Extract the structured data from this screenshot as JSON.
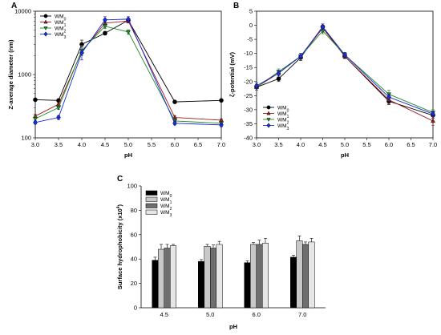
{
  "figure": {
    "colors": {
      "WM0": "#000000",
      "WM1": "#9b1c1c",
      "WM2": "#1f8a2a",
      "WM3": "#1a2bd6"
    },
    "bar_colors": [
      "#000000",
      "#c8c8c8",
      "#6e6e6e",
      "#e6e6e6"
    ]
  },
  "chart_data": [
    {
      "panel": "A",
      "type": "line",
      "xlabel": "pH",
      "ylabel": "Z-average diameter (nm)",
      "xlim": [
        3.0,
        7.0
      ],
      "ylim": [
        100,
        10000
      ],
      "yscale": "log",
      "xticks": [
        "3.0",
        "3.5",
        "4.0",
        "4.5",
        "5.0",
        "5.5",
        "6.0",
        "6.5",
        "7.0"
      ],
      "yticks": [
        "100",
        "1000",
        "10000"
      ],
      "legend": {
        "placement": "top-left"
      },
      "x": [
        3.0,
        3.5,
        4.0,
        4.5,
        5.0,
        6.0,
        7.0
      ],
      "series": [
        {
          "name": "WM",
          "sub": "0",
          "marker": "circle",
          "values": [
            400,
            390,
            3000,
            4500,
            7200,
            370,
            390
          ],
          "err": [
            0,
            0,
            500,
            300,
            400,
            15,
            15
          ]
        },
        {
          "name": "WM",
          "sub": "1",
          "marker": "triangle-up",
          "values": [
            220,
            340,
            2300,
            6500,
            7000,
            210,
            190
          ],
          "err": [
            15,
            20,
            600,
            500,
            500,
            15,
            10
          ]
        },
        {
          "name": "WM",
          "sub": "2",
          "marker": "triangle-down",
          "values": [
            200,
            300,
            2400,
            5800,
            4700,
            185,
            170
          ],
          "err": [
            15,
            20,
            400,
            500,
            400,
            10,
            10
          ]
        },
        {
          "name": "WM",
          "sub": "3",
          "marker": "diamond",
          "values": [
            175,
            210,
            2200,
            7300,
            7500,
            170,
            160
          ],
          "err": [
            10,
            15,
            500,
            900,
            700,
            10,
            10
          ]
        }
      ]
    },
    {
      "panel": "B",
      "type": "line",
      "xlabel": "pH",
      "ylabel": "ζ-potential (mV)",
      "xlim": [
        3.0,
        7.0
      ],
      "ylim": [
        -40,
        5
      ],
      "xticks": [
        "3.0",
        "3.5",
        "4.0",
        "4.5",
        "5.0",
        "5.5",
        "6.0",
        "6.5",
        "7.0"
      ],
      "yticks": [
        "-40",
        "-35",
        "-30",
        "-25",
        "-20",
        "-15",
        "-10",
        "-5",
        "0",
        "5"
      ],
      "legend": {
        "placement": "bottom-left"
      },
      "x": [
        3.0,
        3.5,
        4.0,
        4.5,
        5.0,
        6.0,
        7.0
      ],
      "series": [
        {
          "name": "WM",
          "sub": "0",
          "marker": "circle",
          "values": [
            -22.0,
            -19.0,
            -11.5,
            -0.5,
            -11.0,
            -27.0,
            -32.0
          ],
          "err": [
            1.0,
            1.0,
            1.0,
            1.0,
            0.8,
            1.2,
            1.0
          ]
        },
        {
          "name": "WM",
          "sub": "1",
          "marker": "triangle-up",
          "values": [
            -22.0,
            -17.0,
            -11.0,
            -1.0,
            -11.0,
            -26.5,
            -34.0
          ],
          "err": [
            1.0,
            1.0,
            1.0,
            1.0,
            0.8,
            1.5,
            1.5
          ]
        },
        {
          "name": "WM",
          "sub": "2",
          "marker": "triangle-down",
          "values": [
            -22.0,
            -16.5,
            -11.0,
            -2.0,
            -10.5,
            -24.5,
            -31.0
          ],
          "err": [
            1.0,
            1.0,
            1.0,
            1.0,
            0.8,
            1.5,
            1.0
          ]
        },
        {
          "name": "WM",
          "sub": "3",
          "marker": "diamond",
          "values": [
            -21.5,
            -17.0,
            -11.0,
            -0.5,
            -10.5,
            -25.5,
            -31.5
          ],
          "err": [
            1.0,
            1.0,
            1.0,
            1.0,
            0.8,
            1.0,
            1.0
          ]
        }
      ]
    },
    {
      "panel": "C",
      "type": "bar",
      "xlabel": "pH",
      "ylabel": "Surface hydrophobicity (x10",
      "ylabel_sup": "4",
      "ylabel_end": ")",
      "categories": [
        "4.5",
        "5.0",
        "6.0",
        "7.0"
      ],
      "ylim": [
        0,
        100
      ],
      "yticks": [
        "0",
        "20",
        "40",
        "60",
        "80",
        "100"
      ],
      "legend": {
        "placement": "top-left"
      },
      "series": [
        {
          "name": "WM",
          "sub": "0",
          "values": [
            39,
            38,
            37,
            41.5
          ],
          "err": [
            2.5,
            1.5,
            1.5,
            1.5
          ]
        },
        {
          "name": "WM",
          "sub": "1",
          "values": [
            48,
            50.5,
            52,
            55
          ],
          "err": [
            4,
            1.5,
            1.5,
            4
          ]
        },
        {
          "name": "WM",
          "sub": "2",
          "values": [
            49,
            49,
            52,
            52
          ],
          "err": [
            3,
            2.5,
            3.5,
            2
          ]
        },
        {
          "name": "WM",
          "sub": "3",
          "values": [
            51,
            52,
            53,
            54
          ],
          "err": [
            1,
            2.5,
            4,
            3
          ]
        }
      ]
    }
  ]
}
